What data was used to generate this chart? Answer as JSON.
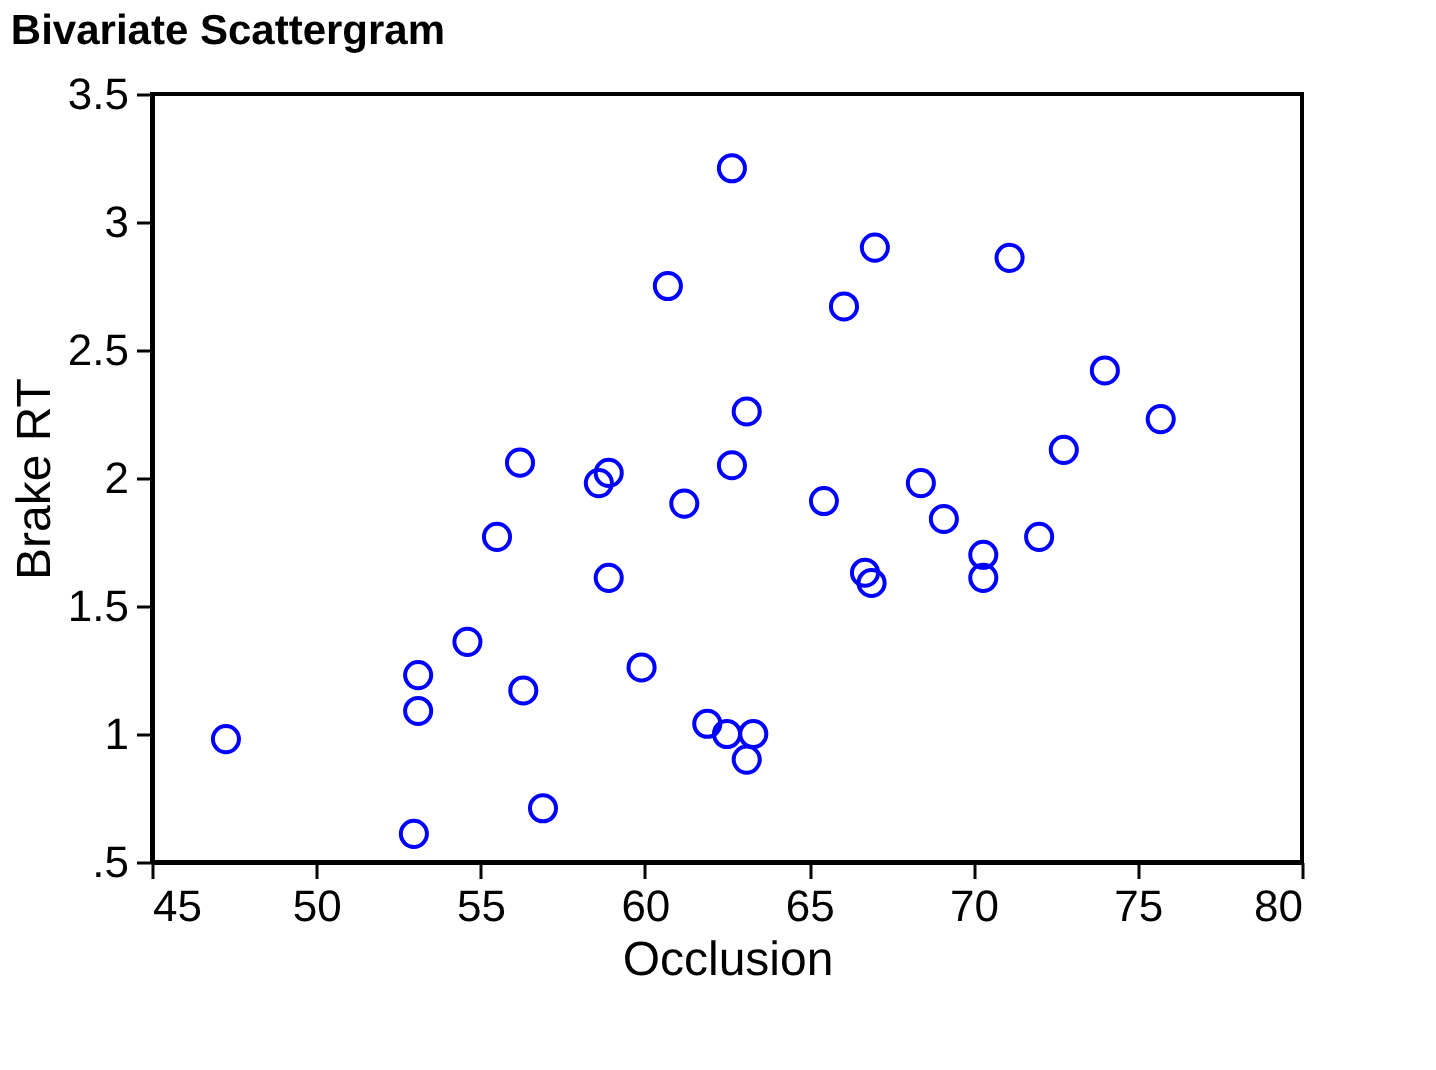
{
  "chart_data": {
    "type": "scatter",
    "title": "Bivariate Scattergram",
    "xlabel": "Occlusion",
    "ylabel": "Brake RT",
    "marker": "circle",
    "grid": false,
    "xlim": [
      45,
      80
    ],
    "xticks": [
      45,
      50,
      55,
      60,
      65,
      70,
      75,
      80
    ],
    "ylim": [
      0.5,
      3.5
    ],
    "yticks": [
      {
        "value": 0.5,
        "label": ".5"
      },
      1,
      1.5,
      2,
      2.5,
      3,
      3.5
    ],
    "series": [
      {
        "color": "#0000ff",
        "x": [
          47.25,
          52.97,
          53.1,
          53.1,
          54.6,
          55.5,
          56.2,
          56.3,
          56.9,
          58.6,
          58.9,
          58.9,
          59.9,
          60.7,
          61.2,
          61.9,
          62.5,
          62.65,
          62.65,
          63.1,
          63.1,
          63.3,
          65.45,
          66.06,
          66.7,
          66.9,
          67.0,
          68.4,
          69.1,
          70.3,
          70.3,
          71.1,
          72.0,
          72.75,
          74.0,
          75.7
        ],
        "values": [
          0.98,
          0.61,
          1.23,
          1.09,
          1.36,
          1.77,
          2.06,
          1.17,
          0.71,
          1.98,
          2.02,
          1.61,
          1.26,
          2.75,
          1.9,
          1.04,
          1.0,
          3.21,
          2.05,
          2.26,
          0.9,
          1.0,
          1.91,
          2.67,
          1.63,
          1.59,
          2.9,
          1.98,
          1.84,
          1.7,
          1.61,
          2.86,
          1.77,
          2.11,
          2.42,
          2.23
        ]
      }
    ]
  }
}
